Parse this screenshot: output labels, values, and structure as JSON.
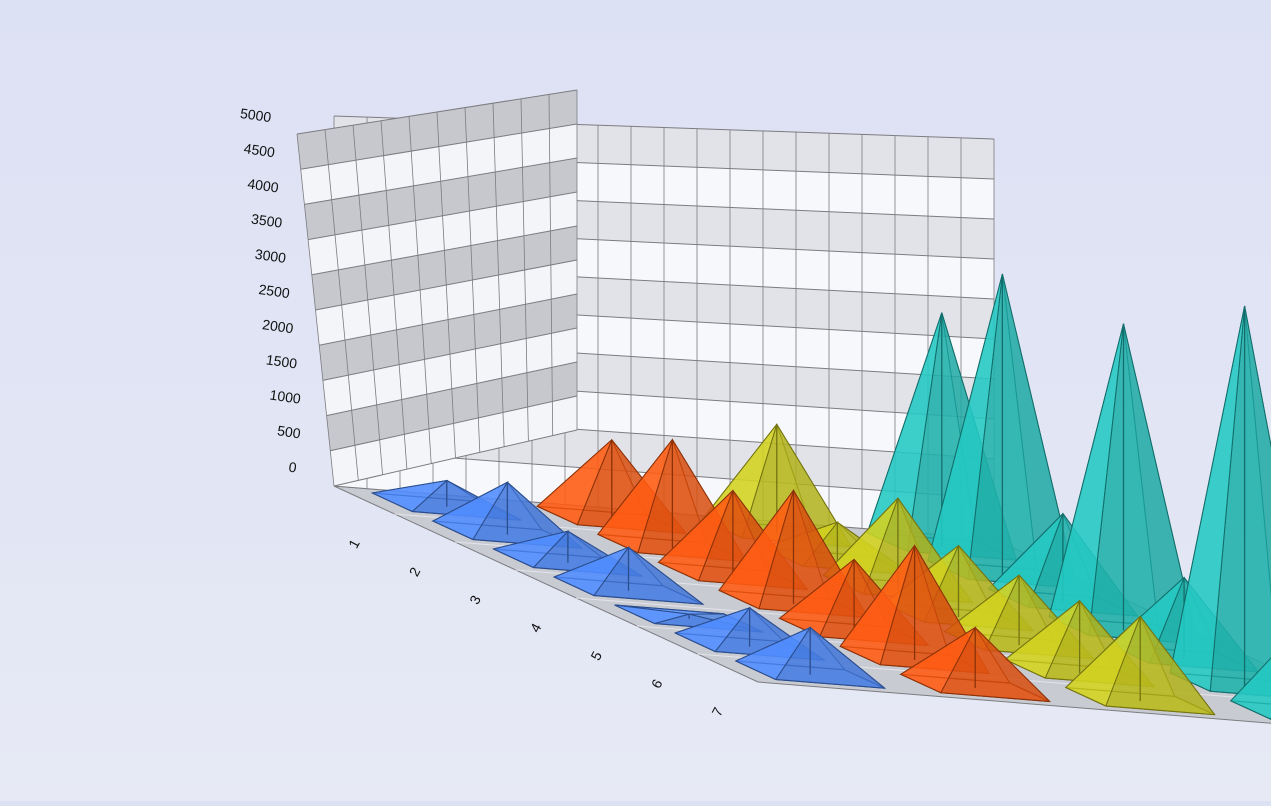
{
  "chart_data": {
    "type": "bar",
    "mark": "pyramid",
    "dimensions": "3d",
    "title": "",
    "categories": [
      "1",
      "2",
      "3",
      "4",
      "5",
      "6",
      "7"
    ],
    "y_ticks": [
      "0",
      "500",
      "1000",
      "1500",
      "2000",
      "2500",
      "3000",
      "3500",
      "4000",
      "4500",
      "5000"
    ],
    "ylim": [
      0,
      5000
    ],
    "grid": true,
    "legend": "none",
    "series": [
      {
        "color": "#4f8cff",
        "values": [
          350,
          700,
          420,
          580,
          60,
          520,
          630
        ]
      },
      {
        "color": "#ff5a10",
        "values": [
          1050,
          1420,
          1120,
          1490,
          950,
          1500,
          790
        ]
      },
      {
        "color": "#d2d21e",
        "values": [
          1400,
          500,
          1170,
          920,
          900,
          930,
          1090
        ]
      },
      {
        "color": "#22c8c2",
        "values": [
          2950,
          3790,
          1120,
          3870,
          1020,
          4800,
          1170
        ]
      }
    ]
  }
}
